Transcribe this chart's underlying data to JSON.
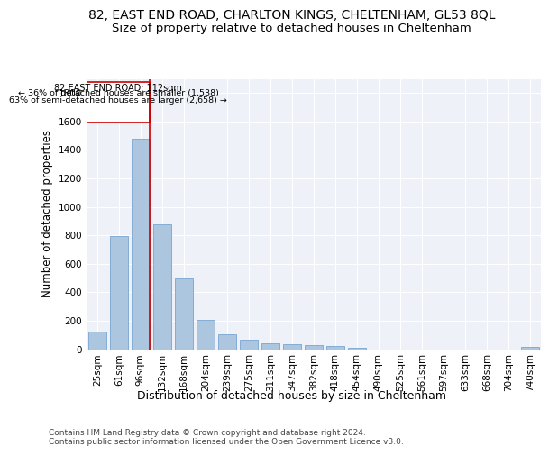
{
  "title1": "82, EAST END ROAD, CHARLTON KINGS, CHELTENHAM, GL53 8QL",
  "title2": "Size of property relative to detached houses in Cheltenham",
  "xlabel": "Distribution of detached houses by size in Cheltenham",
  "ylabel": "Number of detached properties",
  "footnote": "Contains HM Land Registry data © Crown copyright and database right 2024.\nContains public sector information licensed under the Open Government Licence v3.0.",
  "categories": [
    "25sqm",
    "61sqm",
    "96sqm",
    "132sqm",
    "168sqm",
    "204sqm",
    "239sqm",
    "275sqm",
    "311sqm",
    "347sqm",
    "382sqm",
    "418sqm",
    "454sqm",
    "490sqm",
    "525sqm",
    "561sqm",
    "597sqm",
    "633sqm",
    "668sqm",
    "704sqm",
    "740sqm"
  ],
  "values": [
    125,
    795,
    1480,
    880,
    495,
    205,
    105,
    65,
    40,
    35,
    30,
    20,
    10,
    0,
    0,
    0,
    0,
    0,
    0,
    0,
    15
  ],
  "bar_color": "#adc6e0",
  "bar_edge_color": "#6699cc",
  "highlight_bar_index": 2,
  "highlight_color": "#cc0000",
  "annotation_title": "82 EAST END ROAD: 112sqm",
  "annotation_line1": "← 36% of detached houses are smaller (1,538)",
  "annotation_line2": "63% of semi-detached houses are larger (2,658) →",
  "annotation_box_color": "#cc0000",
  "ylim": [
    0,
    1900
  ],
  "yticks": [
    0,
    200,
    400,
    600,
    800,
    1000,
    1200,
    1400,
    1600,
    1800
  ],
  "background_color": "#eef2f8",
  "grid_color": "#ffffff",
  "title1_fontsize": 10,
  "title2_fontsize": 9.5,
  "xlabel_fontsize": 9,
  "ylabel_fontsize": 8.5,
  "tick_fontsize": 7.5,
  "footnote_fontsize": 6.5
}
